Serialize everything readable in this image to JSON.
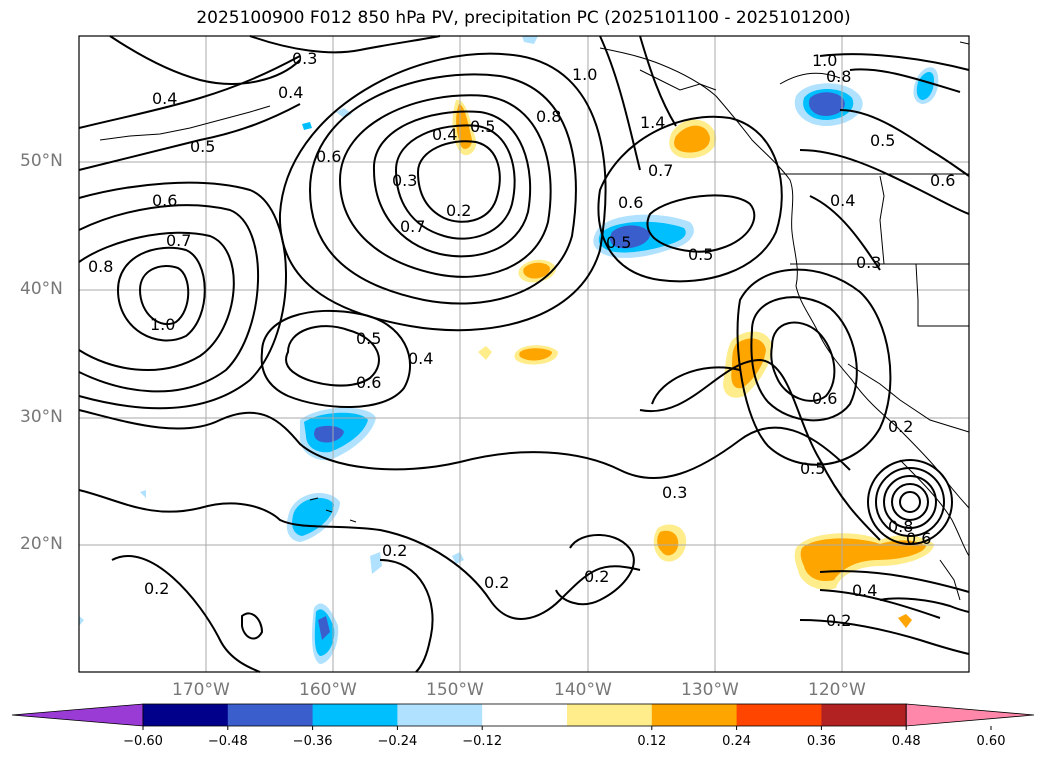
{
  "title": "2025100900 F012 850 hPa PV, precipitation PC (2025101100 - 2025101200)",
  "lat_labels": [
    "50°N",
    "40°N",
    "30°N",
    "20°N"
  ],
  "lon_labels": [
    "170°W",
    "160°W",
    "150°W",
    "140°W",
    "130°W",
    "120°W"
  ],
  "contour_labels": [
    {
      "text": "0.3"
    },
    {
      "text": "0.4"
    },
    {
      "text": "0.4"
    },
    {
      "text": "0.5"
    },
    {
      "text": "0.6"
    },
    {
      "text": "0.4"
    },
    {
      "text": "0.5"
    },
    {
      "text": "0.3"
    },
    {
      "text": "0.2"
    },
    {
      "text": "0.7"
    },
    {
      "text": "1.0"
    },
    {
      "text": "0.8"
    },
    {
      "text": "1.4"
    },
    {
      "text": "0.7"
    },
    {
      "text": "0.6"
    },
    {
      "text": "0.5"
    },
    {
      "text": "0.5"
    },
    {
      "text": "1.0"
    },
    {
      "text": "0.8"
    },
    {
      "text": "0.5"
    },
    {
      "text": "0.6"
    },
    {
      "text": "0.4"
    },
    {
      "text": "0.3"
    },
    {
      "text": "0.6"
    },
    {
      "text": "0.7"
    },
    {
      "text": "0.8"
    },
    {
      "text": "1.0"
    },
    {
      "text": "0.5"
    },
    {
      "text": "0.4"
    },
    {
      "text": "0.6"
    },
    {
      "text": "0.6"
    },
    {
      "text": "0.5"
    },
    {
      "text": "0.3"
    },
    {
      "text": "0.2"
    },
    {
      "text": "0.2"
    },
    {
      "text": "0.2"
    },
    {
      "text": "0.2"
    },
    {
      "text": "0.4"
    },
    {
      "text": "0.2"
    },
    {
      "text": "0.8"
    },
    {
      "text": "0.6"
    },
    {
      "text": "0.2"
    }
  ],
  "colorbar": {
    "colors": [
      "#9a3bd6",
      "#00008b",
      "#3a5fcd",
      "#00bfff",
      "#b0e2ff",
      "#ffffff",
      "#ffec8b",
      "#ffa500",
      "#ff4500",
      "#b22222",
      "#ff88aa"
    ],
    "ticks": [
      "−0.60",
      "−0.48",
      "−0.36",
      "−0.24",
      "−0.12",
      "0.12",
      "0.24",
      "0.36",
      "0.48",
      "0.60"
    ]
  }
}
